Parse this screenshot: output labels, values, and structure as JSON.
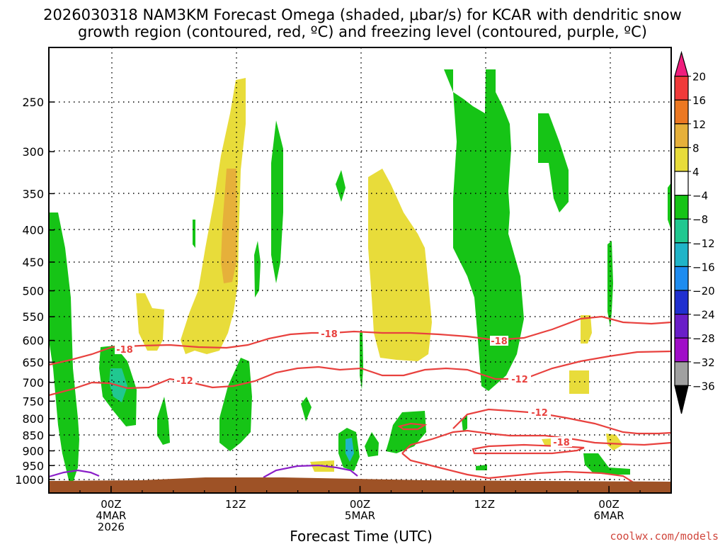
{
  "chart_data": {
    "type": "heatmap",
    "title_line1": "2026030318 NAM3KM Forecast Omega (shaded, μbar/s) for KCAR with dendritic snow",
    "title_line2": "growth region (contoured, red, ºC) and freezing level (contoured, purple, ºC)",
    "xlabel": "Forecast Time (UTC)",
    "y_levels": [
      "250",
      "300",
      "350",
      "400",
      "450",
      "500",
      "550",
      "600",
      "650",
      "700",
      "750",
      "800",
      "850",
      "900",
      "950",
      "1000"
    ],
    "y_values": [
      250,
      300,
      350,
      400,
      450,
      500,
      550,
      600,
      650,
      700,
      750,
      800,
      850,
      900,
      950,
      1000
    ],
    "x_ticks": [
      {
        "hour": 6,
        "line1": "00Z",
        "line2": "4MAR",
        "line3": "2026"
      },
      {
        "hour": 18,
        "line1": "12Z",
        "line2": "",
        "line3": ""
      },
      {
        "hour": 30,
        "line1": "00Z",
        "line2": "5MAR",
        "line3": ""
      },
      {
        "hour": 42,
        "line1": "12Z",
        "line2": "",
        "line3": ""
      },
      {
        "hour": 54,
        "line1": "00Z",
        "line2": "6MAR",
        "line3": ""
      }
    ],
    "x_range_hours": [
      0,
      60
    ],
    "colorbar": {
      "labels": [
        "20",
        "16",
        "12",
        "8",
        "4",
        "−4",
        "−8",
        "−12",
        "−16",
        "−20",
        "−24",
        "−28",
        "−32",
        "−36"
      ],
      "colors": [
        "#f01e7d",
        "#f03a3a",
        "#ec7822",
        "#e6b03a",
        "#e8dc3a",
        "#ffffff",
        "#16c416",
        "#20c890",
        "#20b4c8",
        "#1e8cf0",
        "#2030d0",
        "#6a1ec8",
        "#a00ec8",
        "#a0a0a0",
        "#000000"
      ]
    },
    "contour_labels": {
      "dgz_upper": "-18",
      "dgz_lower": "-12",
      "dgz_low_upper": "-12",
      "dgz_low_lower": "-18"
    },
    "credit": "coolwx.com/models"
  }
}
